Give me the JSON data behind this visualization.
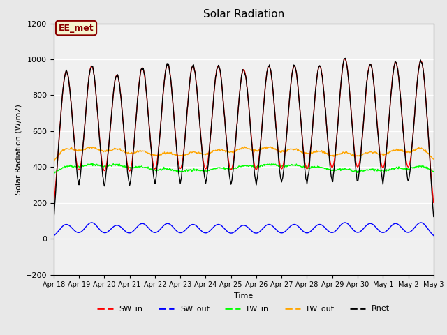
{
  "title": "Solar Radiation",
  "ylabel": "Solar Radiation (W/m2)",
  "xlabel": "Time",
  "ylim": [
    -200,
    1200
  ],
  "yticks": [
    -200,
    0,
    200,
    400,
    600,
    800,
    1000,
    1200
  ],
  "n_days": 15,
  "x_tick_labels": [
    "Apr 18",
    "Apr 19",
    "Apr 20",
    "Apr 21",
    "Apr 22",
    "Apr 23",
    "Apr 24",
    "Apr 25",
    "Apr 26",
    "Apr 27",
    "Apr 28",
    "Apr 29",
    "Apr 30",
    "May 1",
    "May 2",
    "May 3"
  ],
  "legend_entries": [
    "SW_in",
    "SW_out",
    "LW_in",
    "LW_out",
    "Rnet"
  ],
  "legend_colors": [
    "red",
    "blue",
    "lime",
    "orange",
    "black"
  ],
  "annotation_text": "EE_met",
  "sw_in_peaks": [
    930,
    960,
    910,
    950,
    970,
    960,
    960,
    940,
    960,
    960,
    960,
    1000,
    970,
    980,
    990
  ],
  "sw_out_peaks": [
    80,
    90,
    75,
    85,
    85,
    80,
    80,
    75,
    80,
    80,
    80,
    90,
    85,
    85,
    90
  ],
  "hours_per_day": 24,
  "samples_per_hour": 2,
  "background_color": "#e8e8e8",
  "plot_bg_color": "#f0f0f0"
}
